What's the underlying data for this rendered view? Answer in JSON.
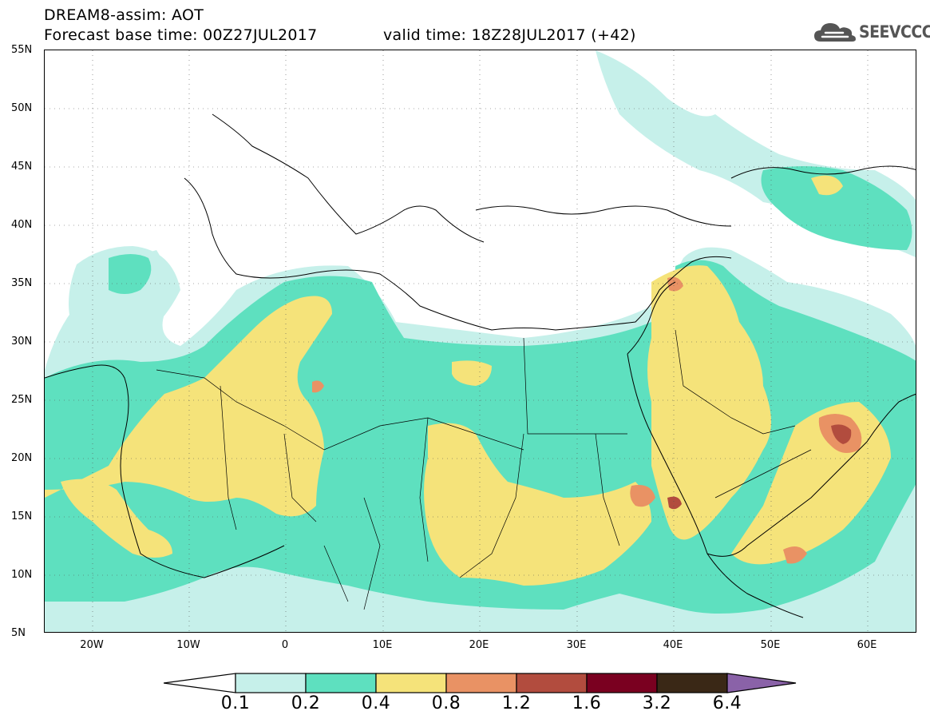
{
  "header": {
    "title_line1": "DREAM8-assim: AOT",
    "title_line2": "Forecast base time: 00Z27JUL2017",
    "valid_time": "valid time: 18Z28JUL2017 (+42)",
    "logo_text": "SEEVCCC"
  },
  "map": {
    "lat_labels": [
      "55N",
      "50N",
      "45N",
      "40N",
      "35N",
      "30N",
      "25N",
      "20N",
      "15N",
      "10N",
      "5N"
    ],
    "lon_labels": [
      "20W",
      "10W",
      "0",
      "10E",
      "20E",
      "30E",
      "40E",
      "50E",
      "60E"
    ]
  },
  "legend": {
    "labels": [
      "0.1",
      "0.2",
      "0.4",
      "0.8",
      "1.2",
      "1.6",
      "3.2",
      "6.4"
    ],
    "colors": [
      "#ffffff",
      "#c6f0ea",
      "#5ee0bf",
      "#f5e37a",
      "#e99264",
      "#b24c3e",
      "#7a0020",
      "#3a2816",
      "#8a62a8"
    ]
  }
}
